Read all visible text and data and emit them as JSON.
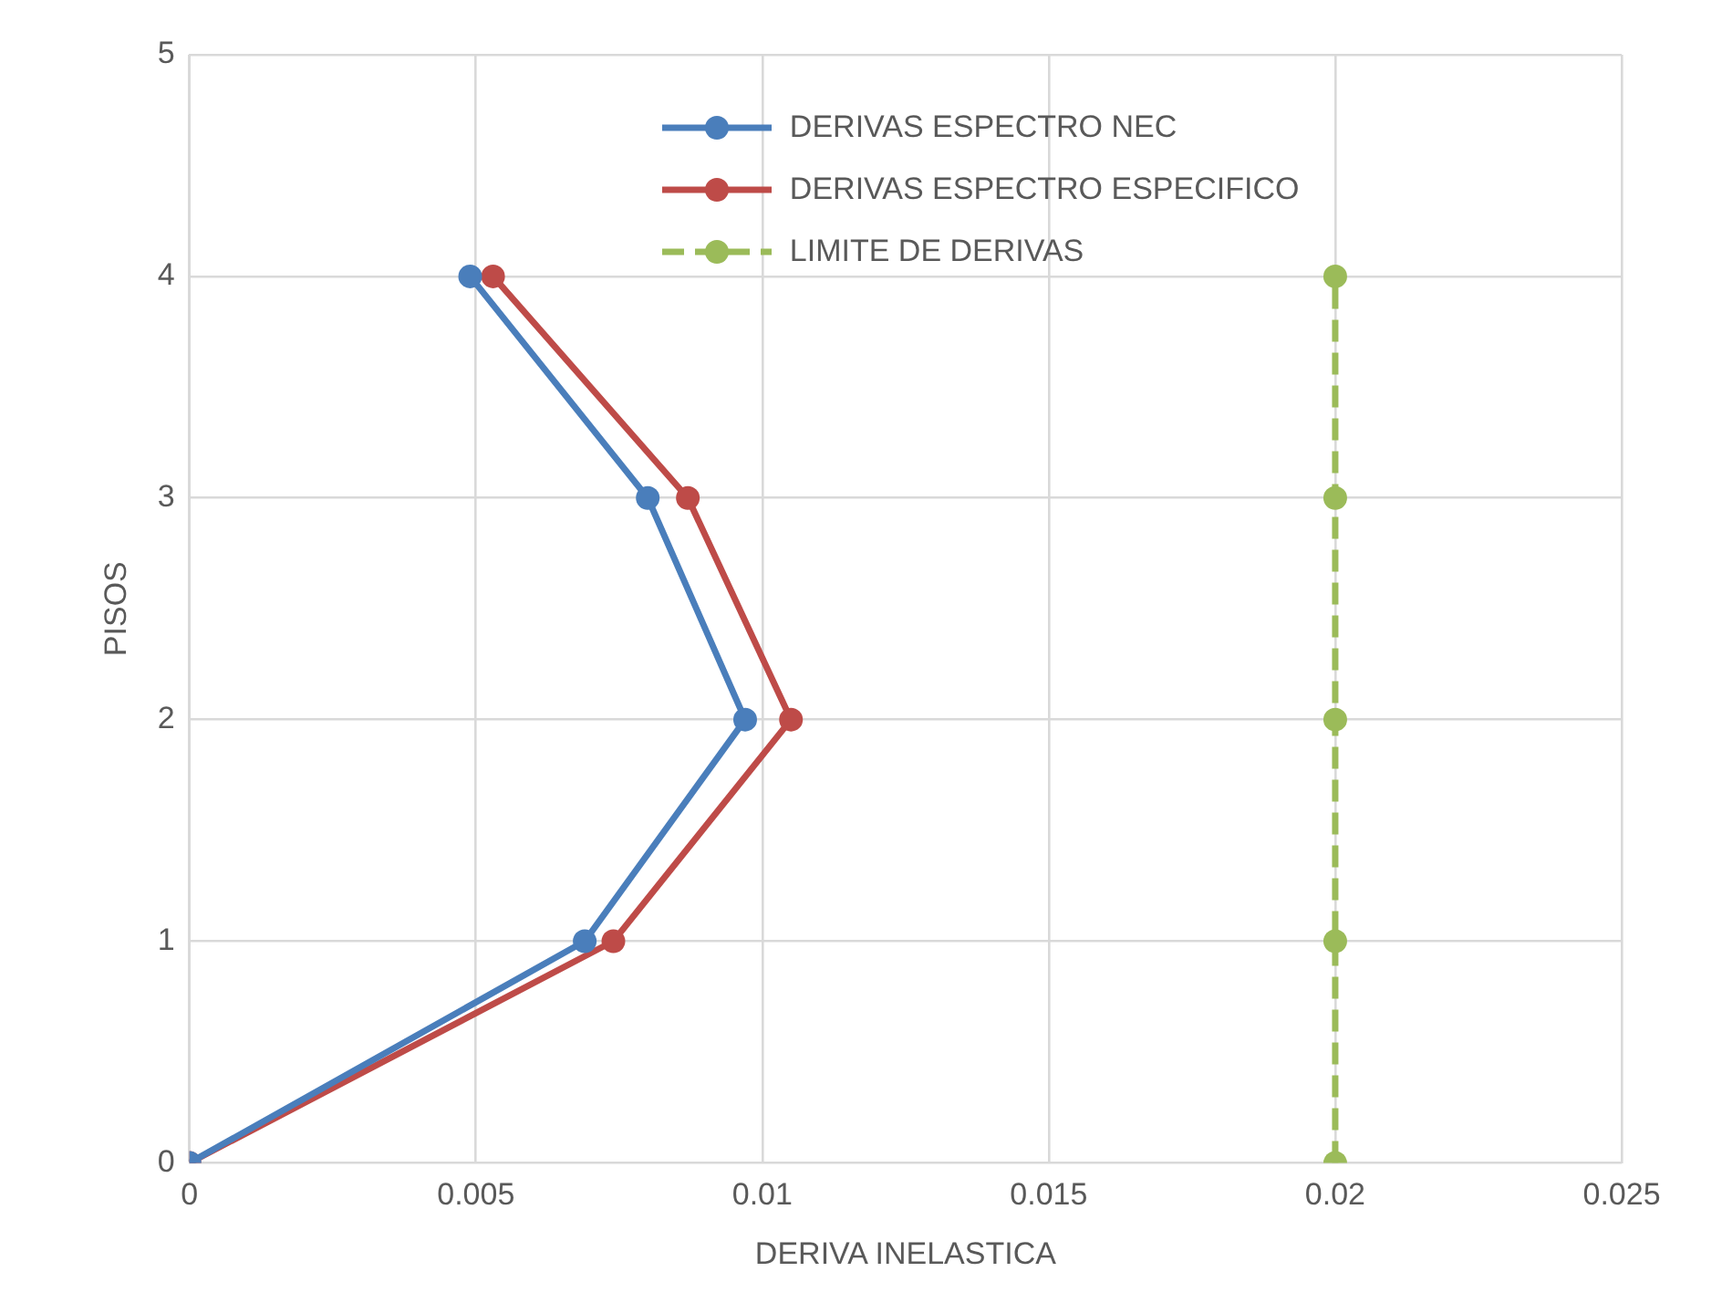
{
  "chart_data": {
    "type": "line",
    "xlabel": "DERIVA INELASTICA",
    "ylabel": "PISOS",
    "xlim": [
      0,
      0.025
    ],
    "xticks": [
      0,
      0.005,
      0.01,
      0.015,
      0.02,
      0.025
    ],
    "ylim": [
      0,
      5
    ],
    "yticks": [
      0,
      1,
      2,
      3,
      4,
      5
    ],
    "grid": true,
    "legend": "top",
    "marker": "circle",
    "series": [
      {
        "name": "DERIVAS ESPECTRO NEC",
        "color": "#4a7ebb",
        "x": [
          0,
          0.0069,
          0.0097,
          0.008,
          0.0049
        ],
        "values": [
          0,
          1,
          2,
          3,
          4
        ]
      },
      {
        "name": "DERIVAS ESPECTRO ESPECIFICO",
        "color": "#be4b48",
        "x": [
          0,
          0.0074,
          0.0105,
          0.0087,
          0.0053
        ],
        "values": [
          0,
          1,
          2,
          3,
          4
        ]
      },
      {
        "name": "LIMITE DE DERIVAS",
        "color": "#9bbb59",
        "line_style": "dashed",
        "x": [
          0.02,
          0.02,
          0.02,
          0.02,
          0.02
        ],
        "values": [
          0,
          1,
          2,
          3,
          4
        ]
      }
    ]
  }
}
